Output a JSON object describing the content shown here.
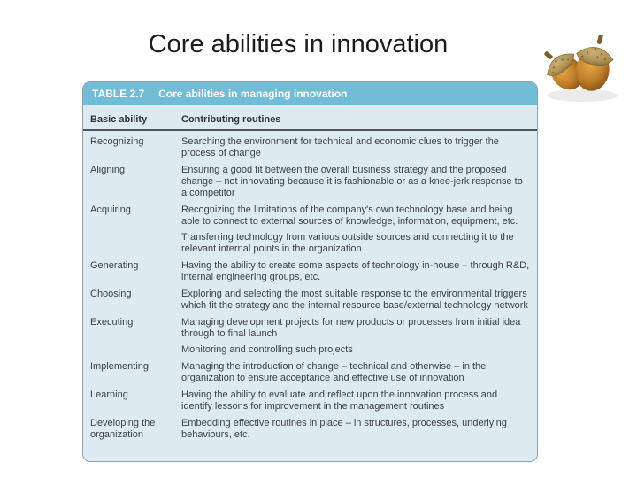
{
  "slide": {
    "title": "Core abilities in innovation"
  },
  "table": {
    "tag": "TABLE 2.7",
    "caption": "Core abilities in managing innovation",
    "columns": [
      "Basic ability",
      "Contributing routines"
    ],
    "rows": [
      {
        "ability": "Recognizing",
        "routines": [
          "Searching the environment for technical and economic clues to trigger the process of change"
        ]
      },
      {
        "ability": "Aligning",
        "routines": [
          "Ensuring a good fit between the overall business strategy and the proposed change – not innovating because it is fashionable or as a knee-jerk response to a competitor"
        ]
      },
      {
        "ability": "Acquiring",
        "routines": [
          "Recognizing the limitations of the company's own technology base and being able to connect to external sources of knowledge, information, equipment, etc.",
          "Transferring technology from various outside sources and connecting it to the relevant internal points in the organization"
        ]
      },
      {
        "ability": "Generating",
        "routines": [
          "Having the ability to create some aspects of technology in-house – through R&D, internal engineering groups, etc."
        ]
      },
      {
        "ability": "Choosing",
        "routines": [
          "Exploring and selecting the most suitable response to the environmental triggers which fit the strategy and the internal resource base/external technology network"
        ]
      },
      {
        "ability": "Executing",
        "routines": [
          "Managing development projects for new products or processes from initial idea through to final launch",
          "Monitoring and controlling such projects"
        ]
      },
      {
        "ability": "Implementing",
        "routines": [
          "Managing the introduction of change – technical and otherwise – in the organization to ensure acceptance and effective use of innovation"
        ]
      },
      {
        "ability": "Learning",
        "routines": [
          "Having the ability to evaluate and reflect upon the innovation process and identify lessons for improvement in the management routines"
        ]
      },
      {
        "ability": "Developing the organization",
        "routines": [
          "Embedding effective routines in place – in structures, processes, underlying behaviours, etc."
        ]
      }
    ]
  },
  "decoration": {
    "acorns_image": "two-acorns-photo",
    "colors": {
      "table_header_bg": "#73BCD6",
      "table_body_bg": "#DCEAF1",
      "table_border": "#8FA0AA",
      "header_text": "#FFFFFF",
      "column_header_text": "#2E3338",
      "body_text": "#3C4146",
      "title_text": "#1C1C1C",
      "acorn_nut": "#C07F2C",
      "acorn_cap": "#AE9256"
    }
  }
}
